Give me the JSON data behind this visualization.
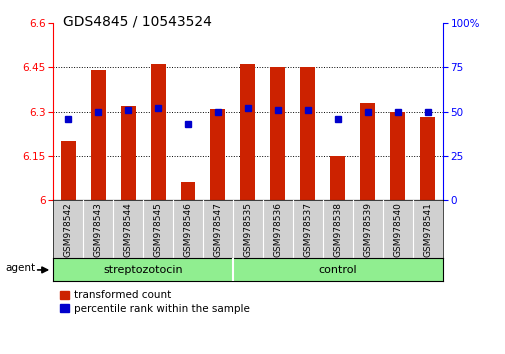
{
  "title": "GDS4845 / 10543524",
  "samples": [
    "GSM978542",
    "GSM978543",
    "GSM978544",
    "GSM978545",
    "GSM978546",
    "GSM978547",
    "GSM978535",
    "GSM978536",
    "GSM978537",
    "GSM978538",
    "GSM978539",
    "GSM978540",
    "GSM978541"
  ],
  "red_values": [
    6.2,
    6.44,
    6.32,
    6.46,
    6.06,
    6.31,
    6.46,
    6.45,
    6.45,
    6.15,
    6.33,
    6.3,
    6.28
  ],
  "blue_values": [
    46,
    50,
    51,
    52,
    43,
    50,
    52,
    51,
    51,
    46,
    50,
    50,
    50
  ],
  "ylim_left": [
    6.0,
    6.6
  ],
  "ylim_right": [
    0,
    100
  ],
  "yticks_left": [
    6.0,
    6.15,
    6.3,
    6.45,
    6.6
  ],
  "yticks_right": [
    0,
    25,
    50,
    75,
    100
  ],
  "ytick_labels_left": [
    "6",
    "6.15",
    "6.3",
    "6.45",
    "6.6"
  ],
  "ytick_labels_right": [
    "0",
    "25",
    "50",
    "75",
    "100%"
  ],
  "hlines": [
    6.15,
    6.3,
    6.45
  ],
  "group_separator": 6,
  "bar_color": "#cc2200",
  "dot_color": "#0000cc",
  "bar_width": 0.5,
  "agent_label": "agent",
  "legend_red": "transformed count",
  "legend_blue": "percentile rank within the sample",
  "bg_color_plot": "#ffffff",
  "tick_area_color": "#d0d0d0",
  "group_color": "#90ee90",
  "title_fontsize": 10,
  "tick_fontsize": 7.5,
  "sample_fontsize": 6.5,
  "group_fontsize": 8,
  "legend_fontsize": 7.5
}
